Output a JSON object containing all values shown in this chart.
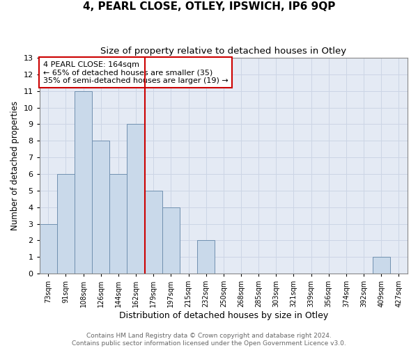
{
  "title": "4, PEARL CLOSE, OTLEY, IPSWICH, IP6 9QP",
  "subtitle": "Size of property relative to detached houses in Otley",
  "xlabel": "Distribution of detached houses by size in Otley",
  "ylabel": "Number of detached properties",
  "categories": [
    "73sqm",
    "91sqm",
    "108sqm",
    "126sqm",
    "144sqm",
    "162sqm",
    "179sqm",
    "197sqm",
    "215sqm",
    "232sqm",
    "250sqm",
    "268sqm",
    "285sqm",
    "303sqm",
    "321sqm",
    "339sqm",
    "356sqm",
    "374sqm",
    "392sqm",
    "409sqm",
    "427sqm"
  ],
  "values": [
    3,
    6,
    11,
    8,
    6,
    9,
    5,
    4,
    0,
    2,
    0,
    0,
    0,
    0,
    0,
    0,
    0,
    0,
    0,
    1,
    0
  ],
  "bar_color": "#c9d9ea",
  "bar_edge_color": "#7090b0",
  "vline_x": 5.5,
  "vline_color": "#cc0000",
  "annotation_text": "4 PEARL CLOSE: 164sqm\n← 65% of detached houses are smaller (35)\n35% of semi-detached houses are larger (19) →",
  "annotation_box_color": "#ffffff",
  "annotation_box_edge_color": "#cc0000",
  "ylim": [
    0,
    13
  ],
  "yticks": [
    0,
    1,
    2,
    3,
    4,
    5,
    6,
    7,
    8,
    9,
    10,
    11,
    12,
    13
  ],
  "grid_color": "#ccd5e5",
  "background_color": "#e4eaf4",
  "footer_text": "Contains HM Land Registry data © Crown copyright and database right 2024.\nContains public sector information licensed under the Open Government Licence v3.0.",
  "title_fontsize": 11,
  "subtitle_fontsize": 9.5,
  "xlabel_fontsize": 9,
  "ylabel_fontsize": 8.5,
  "annotation_fontsize": 8,
  "footer_fontsize": 6.5,
  "tick_fontsize": 7,
  "ytick_fontsize": 8
}
